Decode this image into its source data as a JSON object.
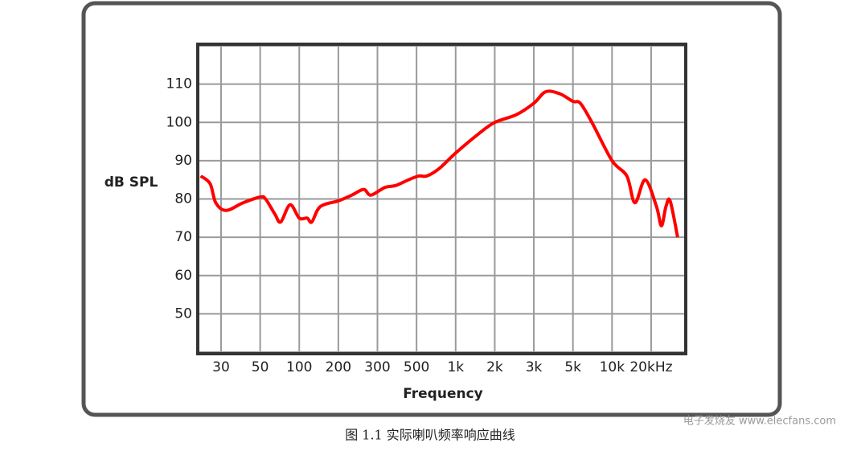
{
  "chart_data": {
    "type": "line",
    "y_label": "dB SPL",
    "x_label": "Frequency",
    "caption": "图 1.1 实际喇叭频率响应曲线",
    "watermark": "电子发烧友 www.elecfans.com",
    "x": [
      23,
      26,
      28,
      32,
      40,
      50,
      55,
      65,
      72,
      85,
      100,
      115,
      125,
      145,
      200,
      230,
      260,
      280,
      330,
      380,
      450,
      520,
      600,
      750,
      1000,
      1500,
      2000,
      2500,
      3000,
      3500,
      4200,
      5000,
      5700,
      7000,
      10000,
      13000,
      15000,
      18000,
      22000,
      24000,
      26000,
      28000,
      32000
    ],
    "series": [
      {
        "name": "SPL",
        "color": "#ff0000",
        "values": [
          86,
          84,
          79,
          77,
          79,
          80.5,
          80,
          76,
          74,
          78.5,
          75,
          75,
          74,
          78,
          79.5,
          81,
          82.5,
          81,
          83,
          83.5,
          85,
          86,
          86,
          88,
          92,
          97,
          100,
          102,
          105,
          108,
          107.5,
          105.5,
          105,
          100,
          90,
          86,
          79,
          85,
          78,
          73,
          78,
          79.5,
          70
        ]
      }
    ],
    "xlim": [
      22.6,
      35900
    ],
    "xticks": [
      30,
      50,
      100,
      200,
      300,
      500,
      {
        "value": 1000,
        "label": "1k"
      },
      {
        "value": 2000,
        "label": "2k"
      },
      {
        "value": 3000,
        "label": "3k"
      },
      {
        "value": 5000,
        "label": "5k"
      },
      {
        "value": 10000,
        "label": "10k"
      },
      {
        "value": 20000,
        "label": "20kHz"
      }
    ],
    "ylim": [
      40,
      120
    ],
    "yticks": [
      50,
      60,
      70,
      80,
      90,
      100,
      110
    ],
    "ygrid": [
      40,
      50,
      60,
      70,
      80,
      90,
      100,
      110,
      120
    ],
    "grid": true
  }
}
